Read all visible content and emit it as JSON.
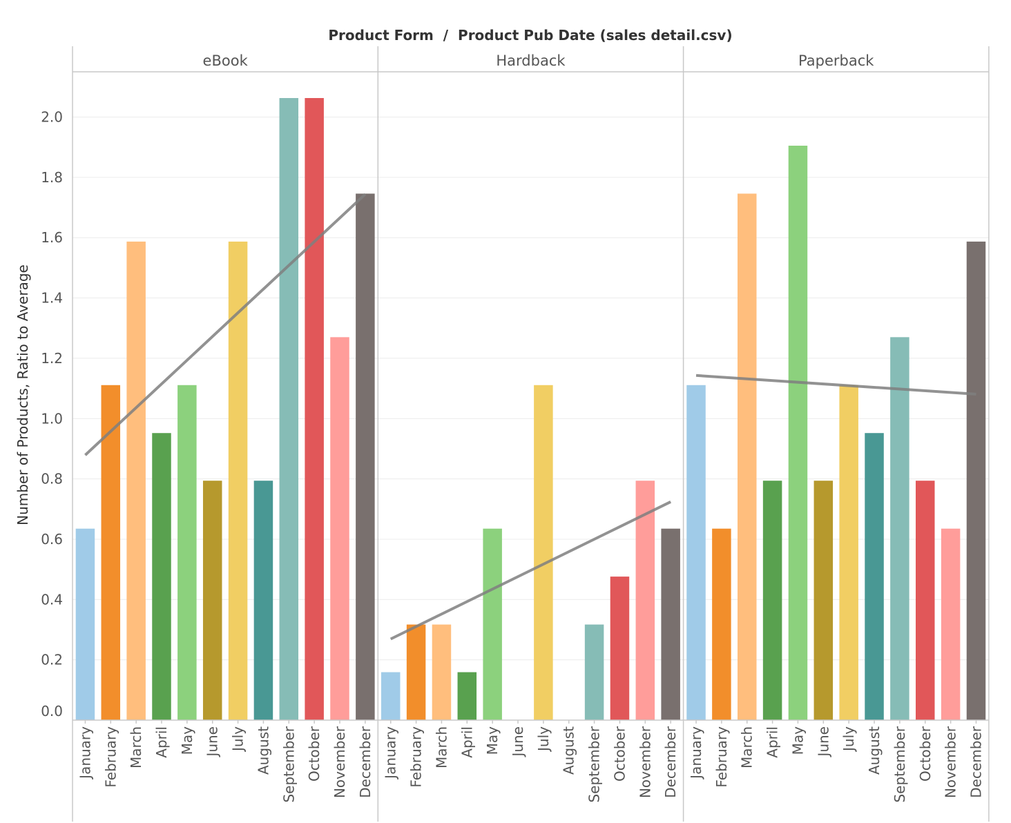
{
  "chart_data": {
    "type": "bar",
    "title": "Product Form  /  Product Pub Date (sales detail.csv)",
    "ylabel": "Number of Products, Ratio to Average",
    "ylim": [
      0,
      2.15
    ],
    "yticks": [
      "0.0",
      "0.2",
      "0.4",
      "0.6",
      "0.8",
      "1.0",
      "1.2",
      "1.4",
      "1.6",
      "1.8",
      "2.0"
    ],
    "categories": [
      "January",
      "February",
      "March",
      "April",
      "May",
      "June",
      "July",
      "August",
      "September",
      "October",
      "November",
      "December"
    ],
    "colors": [
      "#a0cbe8",
      "#f28e2b",
      "#ffbe7d",
      "#59a14f",
      "#8cd17d",
      "#b6992d",
      "#f1ce63",
      "#499894",
      "#86bcb6",
      "#e15759",
      "#ff9d9a",
      "#79706e"
    ],
    "trend_color": "#7f7f7f",
    "grid": true,
    "panels": [
      {
        "name": "eBook",
        "values": [
          0.635,
          1.111,
          1.587,
          0.952,
          1.111,
          0.794,
          1.587,
          0.794,
          2.063,
          2.063,
          1.27,
          1.746
        ],
        "trend": [
          0.879,
          1.744
        ]
      },
      {
        "name": "Hardback",
        "values": [
          0.159,
          0.317,
          0.317,
          0.159,
          0.635,
          null,
          1.111,
          null,
          0.317,
          0.476,
          0.794,
          0.635
        ],
        "trend": [
          0.269,
          0.724
        ]
      },
      {
        "name": "Paperback",
        "values": [
          1.111,
          0.635,
          1.746,
          0.794,
          1.905,
          0.794,
          1.111,
          0.952,
          1.27,
          0.794,
          0.635,
          1.587
        ],
        "trend": [
          1.143,
          1.081
        ]
      }
    ]
  }
}
